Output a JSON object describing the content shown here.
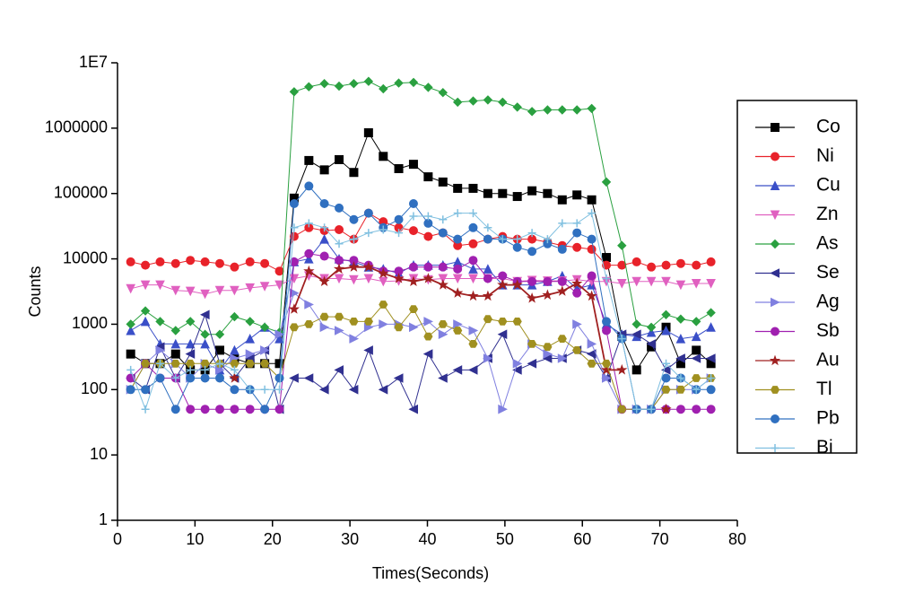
{
  "chart_data": {
    "type": "line",
    "xlabel": "Times(Seconds)",
    "ylabel": "Counts",
    "x": [
      1.7,
      3.6,
      5.5,
      7.5,
      9.4,
      11.3,
      13.2,
      15.1,
      17.1,
      19.0,
      20.9,
      22.8,
      24.7,
      26.7,
      28.6,
      30.5,
      32.4,
      34.3,
      36.3,
      38.2,
      40.1,
      42.0,
      43.9,
      45.9,
      47.8,
      49.7,
      51.6,
      53.5,
      55.5,
      57.4,
      59.3,
      61.2,
      63.1,
      65.1,
      67.0,
      68.9,
      70.8,
      72.7,
      74.7,
      76.6
    ],
    "xlim": [
      0,
      80
    ],
    "xticks": [
      0,
      10,
      20,
      30,
      40,
      50,
      60,
      70,
      80
    ],
    "ylim": [
      1,
      10000000
    ],
    "yscale": "log",
    "yticks": [
      1,
      10,
      100,
      1000,
      10000,
      100000,
      1000000,
      {
        "value": 10000000,
        "label": "1E7"
      }
    ],
    "legend": "right",
    "series": [
      {
        "name": "Co",
        "color": "#000000",
        "marker": "square",
        "values": [
          350,
          250,
          250,
          350,
          200,
          200,
          400,
          300,
          250,
          250,
          250,
          85000,
          320000,
          230000,
          330000,
          210000,
          850000,
          370000,
          240000,
          280000,
          180000,
          150000,
          120000,
          120000,
          100000,
          100000,
          90000,
          110000,
          100000,
          80000,
          95000,
          80000,
          10500,
          650,
          200,
          450,
          900,
          250,
          400,
          250
        ]
      },
      {
        "name": "Ni",
        "color": "#e8222a",
        "marker": "circle",
        "values": [
          9000,
          8000,
          9000,
          8500,
          9500,
          9000,
          8500,
          7500,
          9000,
          8500,
          6500,
          22000,
          30000,
          27000,
          28000,
          20000,
          50000,
          37000,
          30000,
          27000,
          22000,
          25000,
          16000,
          17000,
          20000,
          22000,
          20000,
          20000,
          18000,
          16000,
          15000,
          14000,
          8000,
          8000,
          9000,
          7500,
          8000,
          8500,
          8000,
          9000
        ]
      },
      {
        "name": "Cu",
        "color": "#3a4fc8",
        "marker": "triangle-up",
        "values": [
          800,
          1100,
          500,
          500,
          500,
          500,
          200,
          400,
          600,
          900,
          600,
          9000,
          10000,
          20000,
          10000,
          9000,
          7500,
          7000,
          6000,
          8000,
          8000,
          8000,
          9000,
          7000,
          7000,
          4000,
          4000,
          4000,
          4500,
          5500,
          3500,
          4000,
          1000,
          700,
          650,
          750,
          800,
          600,
          650,
          900
        ]
      },
      {
        "name": "Zn",
        "color": "#e060c0",
        "marker": "triangle-down",
        "values": [
          3500,
          4000,
          4000,
          3300,
          3200,
          2900,
          3300,
          3300,
          3600,
          3800,
          4000,
          5000,
          5500,
          5000,
          5000,
          4800,
          5000,
          4500,
          4600,
          5000,
          4800,
          5000,
          5000,
          5000,
          5000,
          5000,
          4500,
          4700,
          4600,
          4600,
          4800,
          4500,
          4500,
          4200,
          4500,
          4500,
          4500,
          4000,
          4200,
          4200
        ]
      },
      {
        "name": "As",
        "color": "#2aa040",
        "marker": "diamond",
        "values": [
          1000,
          1600,
          1100,
          800,
          1100,
          700,
          700,
          1300,
          1100,
          900,
          750,
          3600000,
          4300000,
          4800000,
          4400000,
          4800000,
          5200000,
          4000000,
          4900000,
          5000000,
          4200000,
          3500000,
          2500000,
          2600000,
          2700000,
          2500000,
          2100000,
          1800000,
          1900000,
          1900000,
          1900000,
          2000000,
          150000,
          16000,
          1000,
          900,
          1400,
          1200,
          1100,
          1500
        ]
      },
      {
        "name": "Se",
        "color": "#303090",
        "marker": "triangle-left",
        "values": [
          150,
          100,
          450,
          150,
          350,
          1400,
          250,
          150,
          300,
          400,
          50,
          150,
          150,
          100,
          200,
          100,
          400,
          100,
          150,
          50,
          350,
          150,
          200,
          200,
          300,
          700,
          200,
          250,
          300,
          300,
          400,
          350,
          150,
          700,
          700,
          500,
          200,
          300,
          300,
          300
        ]
      },
      {
        "name": "Ag",
        "color": "#8080e0",
        "marker": "triangle-right",
        "values": [
          100,
          250,
          400,
          250,
          150,
          250,
          200,
          300,
          350,
          400,
          700,
          3000,
          2000,
          900,
          800,
          600,
          900,
          1000,
          1000,
          900,
          1100,
          700,
          1000,
          800,
          300,
          50,
          250,
          500,
          350,
          300,
          1000,
          500,
          150,
          50,
          50,
          50,
          100,
          100,
          100,
          150
        ]
      },
      {
        "name": "Sb",
        "color": "#a020b0",
        "marker": "circle",
        "values": [
          150,
          250,
          150,
          150,
          50,
          50,
          50,
          50,
          50,
          50,
          50,
          9000,
          12000,
          11000,
          9500,
          9500,
          8000,
          6500,
          6500,
          7500,
          7500,
          7500,
          7000,
          9500,
          5000,
          5500,
          4500,
          4500,
          4500,
          4500,
          3000,
          5500,
          800,
          50,
          50,
          50,
          50,
          50,
          50,
          50
        ]
      },
      {
        "name": "Au",
        "color": "#a02020",
        "marker": "star",
        "values": [
          null,
          null,
          null,
          null,
          null,
          null,
          null,
          150,
          null,
          null,
          null,
          1700,
          6500,
          4500,
          7000,
          7500,
          7500,
          6000,
          5000,
          4500,
          5000,
          4000,
          3000,
          2700,
          2700,
          4000,
          4000,
          2500,
          2800,
          3200,
          4200,
          2700,
          200,
          200,
          null,
          null,
          50,
          null,
          null,
          null
        ]
      },
      {
        "name": "Tl",
        "color": "#a09020",
        "marker": "hexagon",
        "values": [
          100,
          250,
          250,
          250,
          250,
          250,
          250,
          250,
          250,
          250,
          150,
          900,
          1000,
          1300,
          1300,
          1100,
          1100,
          2000,
          900,
          1700,
          650,
          1000,
          800,
          500,
          1200,
          1100,
          1100,
          500,
          450,
          600,
          400,
          250,
          250,
          50,
          50,
          50,
          100,
          100,
          150,
          150
        ]
      },
      {
        "name": "Pb",
        "color": "#3070c0",
        "marker": "circle",
        "values": [
          100,
          100,
          150,
          50,
          150,
          150,
          150,
          100,
          100,
          50,
          150,
          70000,
          130000,
          70000,
          60000,
          40000,
          50000,
          30000,
          40000,
          70000,
          35000,
          25000,
          20000,
          30000,
          20000,
          20000,
          15000,
          13000,
          17000,
          14000,
          25000,
          20000,
          1100,
          600,
          50,
          50,
          150,
          150,
          100,
          100
        ]
      },
      {
        "name": "Bi",
        "color": "#80c0e0",
        "marker": "plus",
        "values": [
          200,
          50,
          250,
          150,
          200,
          200,
          250,
          200,
          100,
          100,
          100,
          30000,
          35000,
          30000,
          17000,
          20000,
          25000,
          28000,
          25000,
          45000,
          45000,
          40000,
          50000,
          50000,
          30000,
          20000,
          20000,
          25000,
          20000,
          35000,
          35000,
          50000,
          5000,
          600,
          50,
          50,
          250,
          150,
          100,
          150
        ]
      }
    ]
  }
}
